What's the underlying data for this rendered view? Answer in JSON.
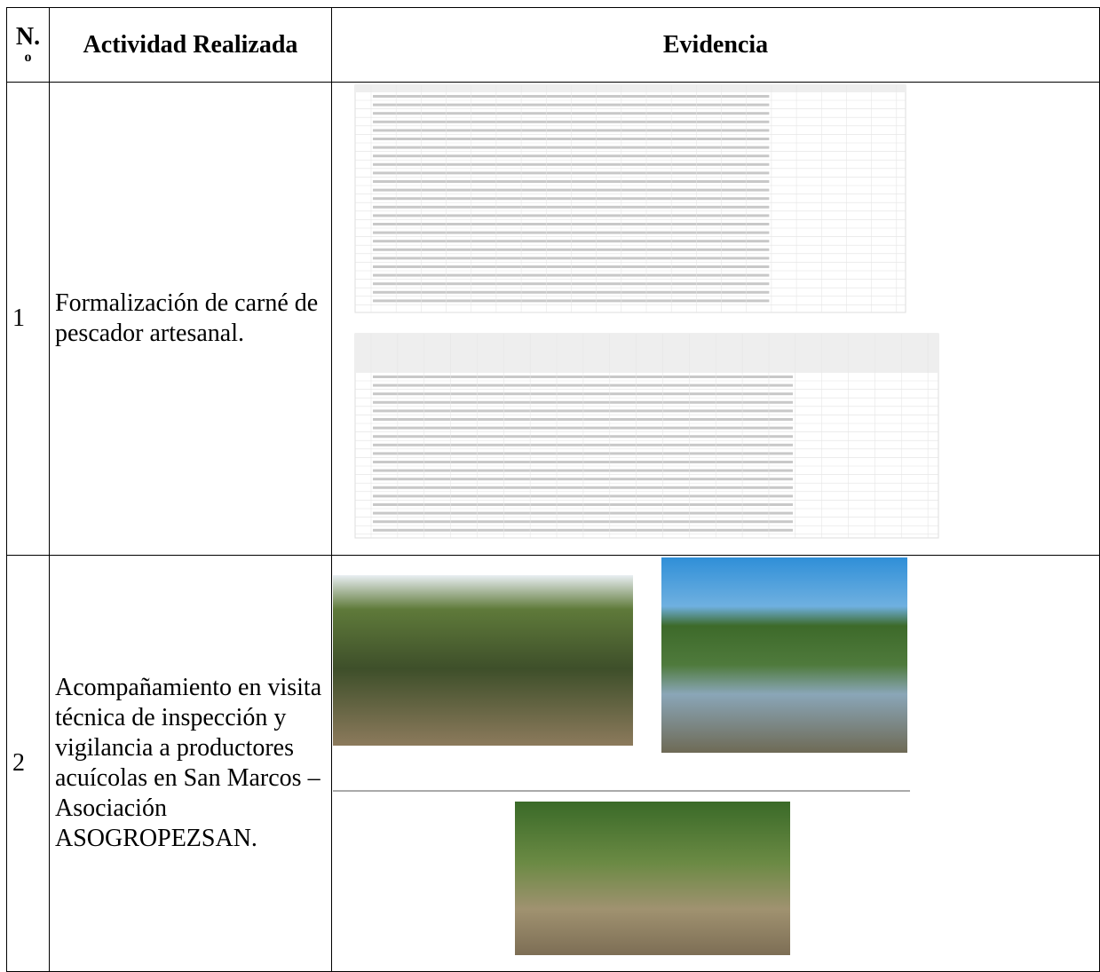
{
  "table": {
    "header": {
      "number": "N.",
      "number_suffix": "o",
      "activity": "Actividad Realizada",
      "evidence": "Evidencia"
    },
    "rows": [
      {
        "number": "1",
        "activity": "Formalización de carné de pescador artesanal."
      },
      {
        "number": "2",
        "activity": "Acompañamiento en visita técnica de inspección y vigilancia a productores acuícolas en San Marcos – Asociación ASOGROPEZSAN."
      }
    ]
  }
}
